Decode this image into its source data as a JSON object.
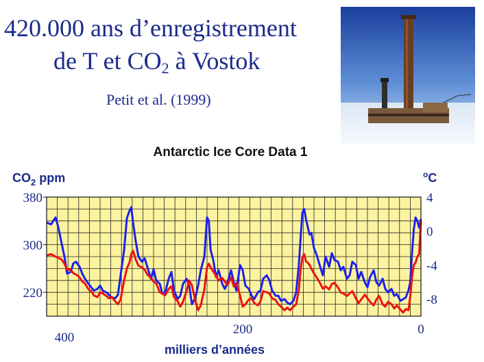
{
  "slide": {
    "title_line1": "420.000 ans d’enregistrement",
    "title_line2_pre": "de T et CO",
    "title_line2_sub": "2",
    "title_line2_post": " à Vostok",
    "citation": "Petit et al. (1999)"
  },
  "chart_data": {
    "type": "line",
    "title": "Antarctic Ice Core Data 1",
    "left_axis_label": "CO",
    "left_axis_label_sub": "2",
    "left_axis_label_suffix": " ppm",
    "right_axis_label": "°C",
    "right_axis_label_sup": "o",
    "right_axis_label_main": "C",
    "xlabel": "milliers d’années",
    "x_reversed": true,
    "xlim": [
      420,
      0
    ],
    "x_ticks": [
      {
        "value": 400,
        "label": "400"
      },
      {
        "value": 200,
        "label": "200"
      },
      {
        "value": 0,
        "label": "0"
      }
    ],
    "y_left_lim": [
      180,
      380
    ],
    "y_left_ticks": [
      {
        "value": 380,
        "label": "380"
      },
      {
        "value": 300,
        "label": "300"
      },
      {
        "value": 220,
        "label": "220"
      }
    ],
    "y_right_lim": [
      -10,
      4
    ],
    "y_right_ticks": [
      {
        "value": 4,
        "label": "4"
      },
      {
        "value": 0,
        "label": "0"
      },
      {
        "value": -4,
        "label": "-4"
      },
      {
        "value": -8,
        "label": "-8"
      }
    ],
    "grid": true,
    "background_color": "#fbf3a0",
    "series": [
      {
        "axis": "right",
        "color": "#1d1ff0",
        "x": [
          420,
          415,
          410,
          407,
          403,
          400,
          397,
          393,
          390,
          387,
          383,
          380,
          377,
          373,
          370,
          367,
          363,
          360,
          357,
          353,
          350,
          347,
          343,
          340,
          337,
          333,
          330,
          327,
          325,
          323,
          320,
          317,
          313,
          310,
          307,
          303,
          300,
          297,
          293,
          290,
          287,
          283,
          280,
          277,
          273,
          270,
          267,
          263,
          260,
          257,
          253,
          250,
          247,
          243,
          240,
          238,
          236,
          233,
          230,
          227,
          223,
          220,
          217,
          213,
          210,
          207,
          203,
          200,
          197,
          193,
          190,
          187,
          183,
          180,
          177,
          173,
          170,
          167,
          163,
          160,
          157,
          153,
          150,
          147,
          143,
          140,
          137,
          135,
          133,
          131,
          129,
          127,
          125,
          123,
          120,
          117,
          113,
          110,
          107,
          103,
          100,
          97,
          93,
          90,
          87,
          83,
          80,
          77,
          73,
          70,
          67,
          63,
          60,
          57,
          53,
          50,
          47,
          43,
          40,
          37,
          33,
          30,
          27,
          23,
          20,
          17,
          14,
          12,
          10,
          8,
          6,
          4,
          2,
          0
        ],
        "values": [
          1.0,
          0.8,
          1.6,
          0.5,
          -1.5,
          -3.0,
          -5.0,
          -4.8,
          -3.8,
          -3.6,
          -4.2,
          -5.0,
          -5.6,
          -6.2,
          -6.6,
          -7.0,
          -6.8,
          -6.4,
          -7.0,
          -7.2,
          -7.5,
          -7.8,
          -7.9,
          -7.5,
          -5.2,
          -2.2,
          1.5,
          2.4,
          2.8,
          1.0,
          -1.2,
          -3.0,
          -3.6,
          -3.2,
          -4.2,
          -5.6,
          -4.5,
          -5.8,
          -6.2,
          -7.4,
          -7.2,
          -5.6,
          -4.8,
          -7.0,
          -8.0,
          -7.6,
          -6.2,
          -5.6,
          -6.4,
          -8.6,
          -7.8,
          -6.4,
          -4.6,
          -3.0,
          1.6,
          1.2,
          -2.2,
          -3.4,
          -5.4,
          -4.6,
          -6.2,
          -6.8,
          -6.0,
          -4.6,
          -6.0,
          -7.0,
          -4.0,
          -4.6,
          -6.4,
          -6.8,
          -7.6,
          -8.0,
          -7.2,
          -7.0,
          -5.6,
          -5.2,
          -5.8,
          -7.0,
          -7.6,
          -7.6,
          -8.2,
          -8.0,
          -8.4,
          -8.6,
          -8.2,
          -7.2,
          -4.0,
          -0.8,
          2.2,
          2.6,
          1.4,
          0.5,
          -0.4,
          -0.2,
          -2.0,
          -2.8,
          -4.2,
          -5.2,
          -3.0,
          -4.2,
          -2.6,
          -3.4,
          -3.6,
          -4.6,
          -4.2,
          -5.6,
          -5.2,
          -3.6,
          -4.0,
          -5.6,
          -4.8,
          -6.0,
          -6.6,
          -5.4,
          -4.6,
          -6.0,
          -6.4,
          -5.6,
          -6.8,
          -7.2,
          -6.8,
          -7.6,
          -7.4,
          -8.2,
          -8.0,
          -7.8,
          -7.0,
          -6.0,
          -2.6,
          0.2,
          1.6,
          1.2,
          0.4,
          1.4
        ]
      },
      {
        "axis": "left",
        "color": "#ee1111",
        "x": [
          420,
          415,
          410,
          407,
          403,
          400,
          397,
          393,
          390,
          387,
          383,
          380,
          377,
          373,
          370,
          367,
          363,
          360,
          357,
          353,
          350,
          347,
          343,
          340,
          337,
          333,
          330,
          327,
          325,
          323,
          320,
          317,
          313,
          310,
          307,
          303,
          300,
          297,
          293,
          290,
          287,
          283,
          280,
          277,
          273,
          270,
          267,
          263,
          260,
          257,
          253,
          250,
          247,
          243,
          240,
          238,
          236,
          233,
          230,
          227,
          223,
          220,
          217,
          213,
          210,
          207,
          203,
          200,
          197,
          193,
          190,
          187,
          183,
          180,
          177,
          173,
          170,
          167,
          163,
          160,
          157,
          153,
          150,
          147,
          143,
          140,
          137,
          135,
          133,
          131,
          129,
          127,
          125,
          123,
          120,
          117,
          113,
          110,
          107,
          103,
          100,
          97,
          93,
          90,
          87,
          83,
          80,
          77,
          73,
          70,
          67,
          63,
          60,
          57,
          53,
          50,
          47,
          43,
          40,
          37,
          33,
          30,
          27,
          23,
          20,
          17,
          14,
          12,
          10,
          8,
          6,
          4,
          2,
          0
        ],
        "values": [
          282,
          284,
          280,
          278,
          275,
          268,
          258,
          258,
          252,
          250,
          245,
          238,
          235,
          225,
          222,
          215,
          212,
          220,
          218,
          214,
          210,
          212,
          205,
          200,
          208,
          240,
          260,
          270,
          284,
          290,
          275,
          265,
          262,
          258,
          250,
          244,
          238,
          235,
          220,
          218,
          215,
          226,
          230,
          212,
          205,
          196,
          204,
          222,
          240,
          232,
          205,
          190,
          198,
          225,
          262,
          268,
          262,
          255,
          248,
          240,
          244,
          238,
          232,
          245,
          230,
          236,
          215,
          196,
          200,
          208,
          210,
          202,
          198,
          205,
          222,
          220,
          218,
          210,
          207,
          200,
          196,
          190,
          194,
          190,
          196,
          200,
          224,
          258,
          278,
          284,
          272,
          270,
          266,
          260,
          252,
          245,
          235,
          226,
          230,
          225,
          234,
          236,
          228,
          220,
          218,
          214,
          218,
          222,
          210,
          202,
          208,
          216,
          210,
          204,
          198,
          208,
          214,
          200,
          196,
          204,
          200,
          193,
          198,
          191,
          186,
          192,
          190,
          212,
          246,
          266,
          270,
          280,
          284,
          340
        ]
      }
    ]
  }
}
